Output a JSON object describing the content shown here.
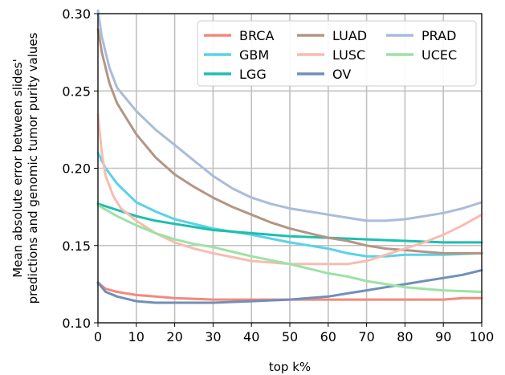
{
  "chart_data": {
    "type": "line",
    "xlabel": "top k%",
    "ylabel_lines": [
      "Mean absolute error between slides'",
      "predictions and genomic tumor purity values"
    ],
    "xlim": [
      0,
      100
    ],
    "ylim": [
      0.1,
      0.3
    ],
    "xticks": [
      0,
      10,
      20,
      30,
      40,
      50,
      60,
      70,
      80,
      90,
      100
    ],
    "yticks": [
      0.1,
      0.15,
      0.2,
      0.25,
      0.3
    ],
    "ytick_labels": [
      "0.10",
      "0.15",
      "0.20",
      "0.25",
      "0.30"
    ],
    "grid": true,
    "legend_position": "top-right",
    "series": [
      {
        "name": "BRCA",
        "color": "#f4897b",
        "points": [
          [
            0,
            0.126
          ],
          [
            2,
            0.122
          ],
          [
            5,
            0.12
          ],
          [
            10,
            0.118
          ],
          [
            15,
            0.117
          ],
          [
            20,
            0.116
          ],
          [
            30,
            0.115
          ],
          [
            40,
            0.115
          ],
          [
            50,
            0.115
          ],
          [
            60,
            0.115
          ],
          [
            70,
            0.115
          ],
          [
            80,
            0.115
          ],
          [
            90,
            0.115
          ],
          [
            95,
            0.116
          ],
          [
            100,
            0.116
          ]
        ]
      },
      {
        "name": "GBM",
        "color": "#5ad2e8",
        "points": [
          [
            0,
            0.21
          ],
          [
            2,
            0.2
          ],
          [
            5,
            0.19
          ],
          [
            10,
            0.178
          ],
          [
            15,
            0.172
          ],
          [
            20,
            0.167
          ],
          [
            25,
            0.164
          ],
          [
            30,
            0.161
          ],
          [
            40,
            0.157
          ],
          [
            50,
            0.152
          ],
          [
            60,
            0.148
          ],
          [
            65,
            0.145
          ],
          [
            70,
            0.143
          ],
          [
            75,
            0.143
          ],
          [
            80,
            0.144
          ],
          [
            90,
            0.144
          ],
          [
            100,
            0.145
          ]
        ]
      },
      {
        "name": "LGG",
        "color": "#1dbfae",
        "points": [
          [
            0,
            0.177
          ],
          [
            5,
            0.173
          ],
          [
            10,
            0.169
          ],
          [
            15,
            0.166
          ],
          [
            20,
            0.164
          ],
          [
            25,
            0.162
          ],
          [
            30,
            0.16
          ],
          [
            40,
            0.158
          ],
          [
            50,
            0.156
          ],
          [
            60,
            0.155
          ],
          [
            70,
            0.154
          ],
          [
            80,
            0.153
          ],
          [
            90,
            0.152
          ],
          [
            100,
            0.152
          ]
        ]
      },
      {
        "name": "LUAD",
        "color": "#b39684",
        "points": [
          [
            0,
            0.29
          ],
          [
            1,
            0.275
          ],
          [
            3,
            0.255
          ],
          [
            5,
            0.242
          ],
          [
            8,
            0.23
          ],
          [
            10,
            0.222
          ],
          [
            15,
            0.207
          ],
          [
            20,
            0.196
          ],
          [
            25,
            0.188
          ],
          [
            30,
            0.181
          ],
          [
            35,
            0.175
          ],
          [
            40,
            0.17
          ],
          [
            45,
            0.165
          ],
          [
            50,
            0.161
          ],
          [
            55,
            0.158
          ],
          [
            60,
            0.155
          ],
          [
            65,
            0.153
          ],
          [
            70,
            0.15
          ],
          [
            75,
            0.148
          ],
          [
            80,
            0.147
          ],
          [
            85,
            0.146
          ],
          [
            90,
            0.145
          ],
          [
            100,
            0.145
          ]
        ]
      },
      {
        "name": "LUSC",
        "color": "#f8bcb0",
        "points": [
          [
            0,
            0.235
          ],
          [
            1,
            0.21
          ],
          [
            2,
            0.195
          ],
          [
            4,
            0.182
          ],
          [
            6,
            0.174
          ],
          [
            10,
            0.166
          ],
          [
            15,
            0.158
          ],
          [
            20,
            0.152
          ],
          [
            25,
            0.148
          ],
          [
            30,
            0.145
          ],
          [
            40,
            0.14
          ],
          [
            50,
            0.138
          ],
          [
            60,
            0.138
          ],
          [
            65,
            0.138
          ],
          [
            70,
            0.14
          ],
          [
            75,
            0.144
          ],
          [
            80,
            0.148
          ],
          [
            85,
            0.152
          ],
          [
            90,
            0.157
          ],
          [
            95,
            0.163
          ],
          [
            100,
            0.17
          ]
        ]
      },
      {
        "name": "OV",
        "color": "#7190b8",
        "points": [
          [
            0,
            0.126
          ],
          [
            2,
            0.12
          ],
          [
            5,
            0.117
          ],
          [
            10,
            0.114
          ],
          [
            15,
            0.113
          ],
          [
            20,
            0.113
          ],
          [
            30,
            0.113
          ],
          [
            40,
            0.114
          ],
          [
            50,
            0.115
          ],
          [
            60,
            0.117
          ],
          [
            65,
            0.119
          ],
          [
            70,
            0.121
          ],
          [
            75,
            0.123
          ],
          [
            80,
            0.125
          ],
          [
            85,
            0.127
          ],
          [
            90,
            0.129
          ],
          [
            95,
            0.131
          ],
          [
            100,
            0.134
          ]
        ]
      },
      {
        "name": "PRAD",
        "color": "#a9bcda",
        "points": [
          [
            0,
            0.302
          ],
          [
            1,
            0.285
          ],
          [
            3,
            0.265
          ],
          [
            5,
            0.252
          ],
          [
            10,
            0.237
          ],
          [
            15,
            0.225
          ],
          [
            20,
            0.215
          ],
          [
            25,
            0.205
          ],
          [
            30,
            0.195
          ],
          [
            35,
            0.187
          ],
          [
            40,
            0.181
          ],
          [
            45,
            0.177
          ],
          [
            50,
            0.174
          ],
          [
            55,
            0.172
          ],
          [
            60,
            0.17
          ],
          [
            65,
            0.168
          ],
          [
            70,
            0.166
          ],
          [
            75,
            0.166
          ],
          [
            80,
            0.167
          ],
          [
            85,
            0.169
          ],
          [
            90,
            0.171
          ],
          [
            95,
            0.174
          ],
          [
            100,
            0.178
          ]
        ]
      },
      {
        "name": "UCEC",
        "color": "#9ce2a6",
        "points": [
          [
            0,
            0.176
          ],
          [
            5,
            0.169
          ],
          [
            10,
            0.163
          ],
          [
            15,
            0.158
          ],
          [
            20,
            0.154
          ],
          [
            25,
            0.151
          ],
          [
            30,
            0.149
          ],
          [
            35,
            0.146
          ],
          [
            40,
            0.143
          ],
          [
            50,
            0.138
          ],
          [
            55,
            0.135
          ],
          [
            60,
            0.132
          ],
          [
            65,
            0.13
          ],
          [
            70,
            0.127
          ],
          [
            75,
            0.125
          ],
          [
            80,
            0.123
          ],
          [
            85,
            0.122
          ],
          [
            90,
            0.121
          ],
          [
            100,
            0.12
          ]
        ]
      }
    ],
    "legend_order": [
      "BRCA",
      "LUAD",
      "PRAD",
      "GBM",
      "LUSC",
      "UCEC",
      "LGG",
      "OV"
    ]
  }
}
